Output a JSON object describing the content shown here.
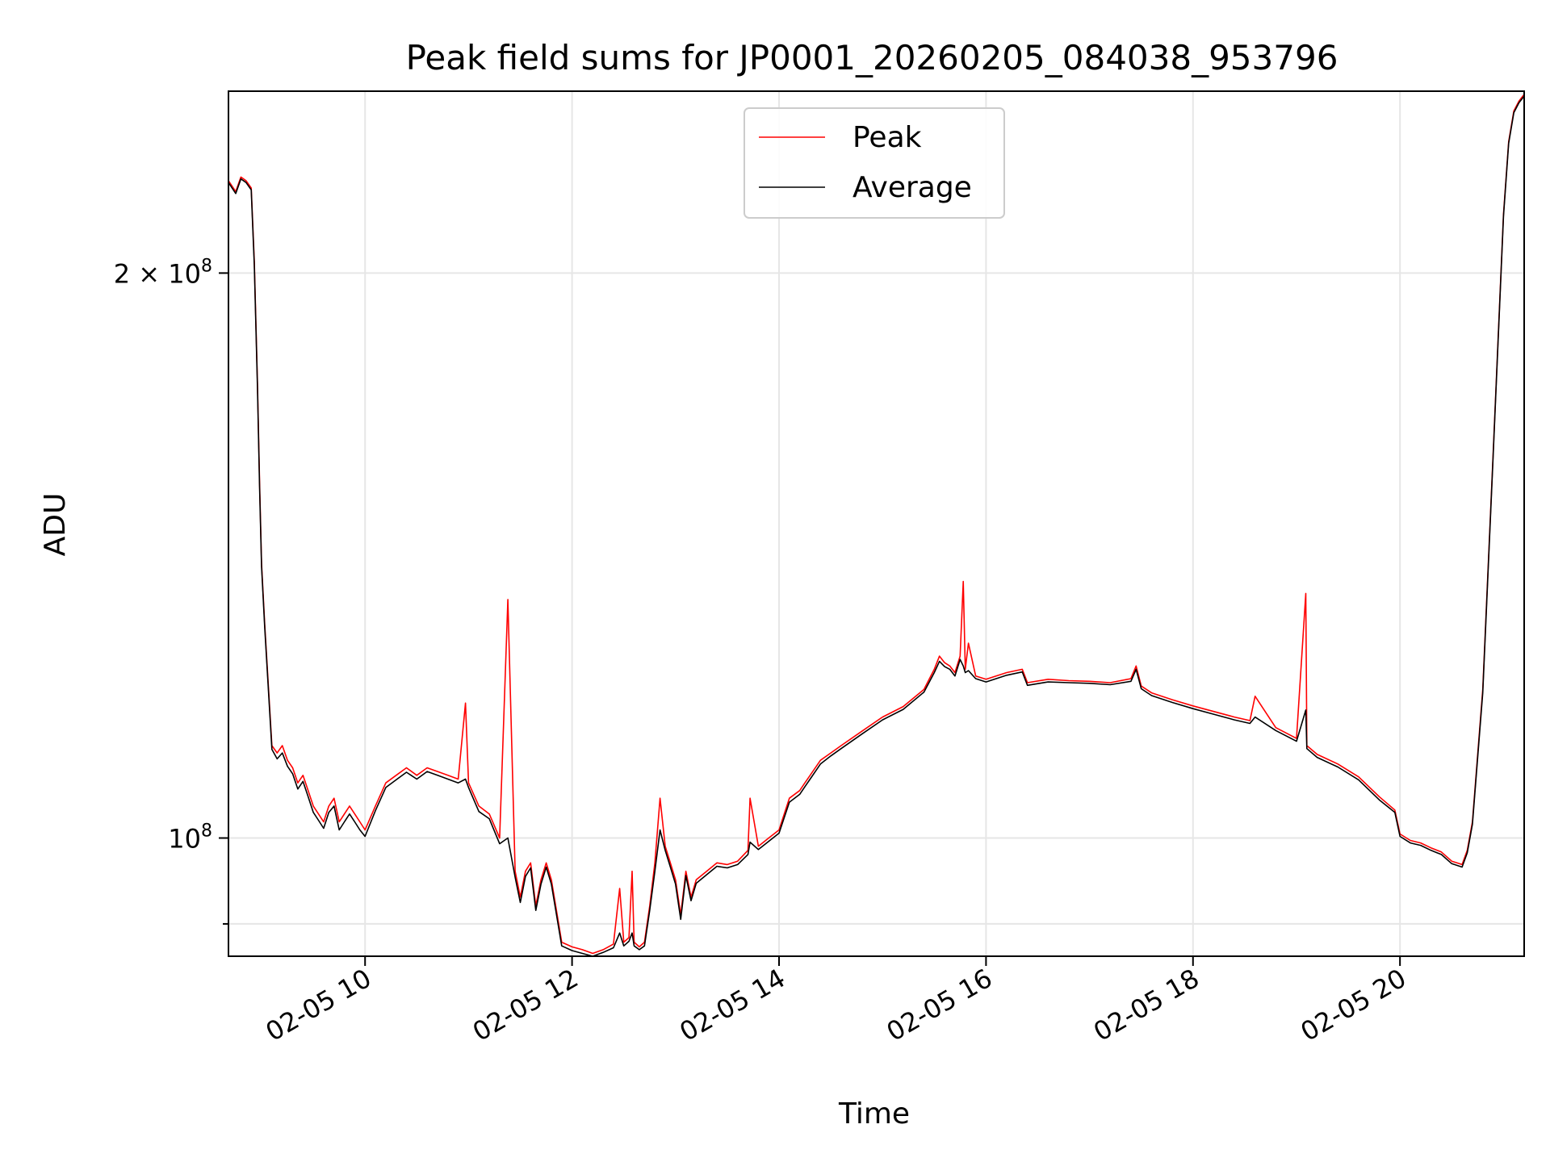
{
  "chart_data": {
    "type": "line",
    "title": "Peak field sums for JP0001_20260205_084038_953796",
    "xlabel": "Time",
    "ylabel": "ADU",
    "x_unit": "hours on 02-05",
    "xlim": [
      8.68,
      21.2
    ],
    "ylim": [
      86500000,
      250000000
    ],
    "y_scale": "log",
    "grid": true,
    "legend_position": "upper center",
    "x_ticks": [
      {
        "value": 10,
        "label": "02-05 10"
      },
      {
        "value": 12,
        "label": "02-05 12"
      },
      {
        "value": 14,
        "label": "02-05 14"
      },
      {
        "value": 16,
        "label": "02-05 16"
      },
      {
        "value": 18,
        "label": "02-05 18"
      },
      {
        "value": 20,
        "label": "02-05 20"
      }
    ],
    "y_ticks": [
      {
        "value": 100000000,
        "base": "10",
        "exp": "8",
        "mult": ""
      },
      {
        "value": 200000000,
        "base": "10",
        "exp": "8",
        "mult": "2 × "
      }
    ],
    "y_minor_ticks": [
      90000000
    ],
    "series": [
      {
        "name": "Peak",
        "color": "#ff0000",
        "x": [
          8.68,
          8.75,
          8.8,
          8.85,
          8.9,
          8.93,
          8.96,
          8.98,
          9.0,
          9.03,
          9.06,
          9.1,
          9.15,
          9.2,
          9.25,
          9.3,
          9.35,
          9.4,
          9.45,
          9.5,
          9.55,
          9.6,
          9.65,
          9.7,
          9.75,
          9.8,
          9.85,
          9.9,
          9.95,
          10.0,
          10.1,
          10.2,
          10.3,
          10.4,
          10.5,
          10.6,
          10.7,
          10.8,
          10.9,
          10.97,
          11.0,
          11.1,
          11.2,
          11.3,
          11.38,
          11.45,
          11.5,
          11.55,
          11.6,
          11.65,
          11.7,
          11.75,
          11.8,
          11.9,
          12.0,
          12.1,
          12.2,
          12.3,
          12.4,
          12.46,
          12.5,
          12.55,
          12.58,
          12.6,
          12.65,
          12.7,
          12.75,
          12.8,
          12.85,
          12.9,
          12.95,
          13.0,
          13.05,
          13.1,
          13.15,
          13.2,
          13.3,
          13.4,
          13.5,
          13.6,
          13.7,
          13.72,
          13.8,
          13.9,
          14.0,
          14.1,
          14.2,
          14.25,
          14.3,
          14.4,
          14.5,
          14.6,
          14.8,
          15.0,
          15.2,
          15.4,
          15.5,
          15.55,
          15.6,
          15.65,
          15.7,
          15.75,
          15.78,
          15.8,
          15.83,
          15.9,
          16.0,
          16.2,
          16.35,
          16.4,
          16.6,
          16.8,
          17.0,
          17.2,
          17.4,
          17.45,
          17.5,
          17.6,
          17.8,
          18.0,
          18.2,
          18.4,
          18.55,
          18.6,
          18.8,
          19.0,
          19.09,
          19.1,
          19.2,
          19.4,
          19.6,
          19.8,
          19.95,
          20.0,
          20.1,
          20.2,
          20.3,
          20.4,
          20.5,
          20.55,
          20.6,
          20.65,
          20.7,
          20.8,
          20.9,
          21.0,
          21.05,
          21.1,
          21.15,
          21.2
        ],
        "y": [
          224000000,
          221000000,
          225000000,
          224000000,
          222000000,
          203000000,
          175000000,
          155000000,
          140000000,
          130000000,
          122000000,
          112000000,
          111000000,
          112000000,
          110000000,
          109000000,
          107000000,
          108000000,
          106000000,
          104000000,
          103000000,
          102000000,
          104000000,
          105000000,
          102000000,
          103000000,
          104000000,
          103000000,
          102000000,
          101000000,
          104000000,
          107000000,
          108000000,
          109000000,
          108000000,
          109000000,
          108500000,
          108000000,
          107500000,
          118000000,
          107000000,
          104000000,
          103000000,
          100000000,
          134000000,
          96000000,
          93000000,
          96000000,
          97000000,
          92000000,
          95000000,
          97000000,
          95000000,
          88000000,
          87500000,
          87200000,
          86800000,
          87200000,
          87800000,
          94000000,
          88000000,
          88500000,
          96000000,
          88000000,
          87500000,
          88000000,
          92000000,
          97000000,
          105000000,
          99000000,
          97000000,
          95000000,
          91000000,
          96000000,
          93000000,
          95000000,
          96000000,
          97000000,
          96800000,
          97200000,
          98500000,
          105000000,
          99000000,
          100000000,
          101000000,
          105000000,
          106000000,
          107000000,
          108000000,
          110000000,
          111000000,
          112000000,
          114000000,
          116000000,
          117500000,
          120000000,
          123000000,
          125000000,
          124000000,
          123500000,
          122500000,
          125000000,
          137000000,
          123000000,
          127000000,
          122000000,
          121500000,
          122500000,
          123000000,
          121000000,
          121500000,
          121300000,
          121200000,
          121000000,
          121600000,
          123500000,
          120500000,
          119500000,
          118500000,
          117600000,
          116800000,
          116000000,
          115500000,
          119000000,
          114500000,
          113000000,
          135000000,
          112000000,
          110800000,
          109500000,
          107800000,
          105200000,
          103500000,
          100500000,
          99700000,
          99400000,
          98800000,
          98300000,
          97200000,
          97000000,
          96800000,
          98500000,
          102000000,
          120000000,
          160000000,
          215000000,
          235000000,
          244000000,
          247000000,
          249000000
        ]
      },
      {
        "name": "Average",
        "color": "#000000",
        "x": [
          8.68,
          8.75,
          8.8,
          8.85,
          8.9,
          8.93,
          8.96,
          8.98,
          9.0,
          9.03,
          9.06,
          9.1,
          9.15,
          9.2,
          9.25,
          9.3,
          9.35,
          9.4,
          9.45,
          9.5,
          9.55,
          9.6,
          9.65,
          9.7,
          9.75,
          9.8,
          9.85,
          9.9,
          9.95,
          10.0,
          10.1,
          10.2,
          10.3,
          10.4,
          10.5,
          10.6,
          10.7,
          10.8,
          10.9,
          10.97,
          11.0,
          11.1,
          11.2,
          11.3,
          11.38,
          11.45,
          11.5,
          11.55,
          11.6,
          11.65,
          11.7,
          11.75,
          11.8,
          11.9,
          12.0,
          12.1,
          12.2,
          12.3,
          12.4,
          12.46,
          12.5,
          12.55,
          12.58,
          12.6,
          12.65,
          12.7,
          12.75,
          12.8,
          12.85,
          12.9,
          12.95,
          13.0,
          13.05,
          13.1,
          13.15,
          13.2,
          13.3,
          13.4,
          13.5,
          13.6,
          13.7,
          13.72,
          13.8,
          13.9,
          14.0,
          14.1,
          14.2,
          14.25,
          14.3,
          14.4,
          14.5,
          14.6,
          14.8,
          15.0,
          15.2,
          15.4,
          15.5,
          15.55,
          15.6,
          15.65,
          15.7,
          15.75,
          15.78,
          15.8,
          15.83,
          15.9,
          16.0,
          16.2,
          16.35,
          16.4,
          16.6,
          16.8,
          17.0,
          17.2,
          17.4,
          17.45,
          17.5,
          17.6,
          17.8,
          18.0,
          18.2,
          18.4,
          18.55,
          18.6,
          18.8,
          19.0,
          19.09,
          19.1,
          19.2,
          19.4,
          19.6,
          19.8,
          19.95,
          20.0,
          20.1,
          20.2,
          20.3,
          20.4,
          20.5,
          20.55,
          20.6,
          20.65,
          20.7,
          20.8,
          20.9,
          21.0,
          21.05,
          21.1,
          21.15,
          21.2
        ],
        "y": [
          223500000,
          220500000,
          224500000,
          223500000,
          221500000,
          202000000,
          174000000,
          154000000,
          139500000,
          129500000,
          121500000,
          111500000,
          110200000,
          111000000,
          109200000,
          108200000,
          106200000,
          107200000,
          105200000,
          103200000,
          102200000,
          101200000,
          103200000,
          104000000,
          101000000,
          102000000,
          103000000,
          102000000,
          101000000,
          100200000,
          103400000,
          106400000,
          107400000,
          108400000,
          107500000,
          108500000,
          108000000,
          107500000,
          107000000,
          107500000,
          106400000,
          103300000,
          102400000,
          99300000,
          100000000,
          95300000,
          92400000,
          95400000,
          96400000,
          91500000,
          94500000,
          96500000,
          94500000,
          87600000,
          87100000,
          86800000,
          86500000,
          86900000,
          87400000,
          89000000,
          87600000,
          88100000,
          89000000,
          87600000,
          87200000,
          87600000,
          91500000,
          96000000,
          101000000,
          98500000,
          96500000,
          94500000,
          90500000,
          95500000,
          92600000,
          94600000,
          95600000,
          96600000,
          96400000,
          96800000,
          98000000,
          99500000,
          98600000,
          99600000,
          100600000,
          104500000,
          105500000,
          106500000,
          107500000,
          109500000,
          110600000,
          111600000,
          113600000,
          115600000,
          117100000,
          119600000,
          122500000,
          124200000,
          123400000,
          123000000,
          122000000,
          124500000,
          123500000,
          122500000,
          122800000,
          121600000,
          121100000,
          122100000,
          122600000,
          120600000,
          121100000,
          121000000,
          120900000,
          120700000,
          121200000,
          123000000,
          120100000,
          119100000,
          118100000,
          117200000,
          116400000,
          115600000,
          115100000,
          116000000,
          114100000,
          112600000,
          117000000,
          111600000,
          110400000,
          109100000,
          107400000,
          104800000,
          103200000,
          100200000,
          99400000,
          99100000,
          98500000,
          98000000,
          96900000,
          96700000,
          96500000,
          98200000,
          101700000,
          119500000,
          159500000,
          214500000,
          234500000,
          243500000,
          246500000,
          248500000
        ]
      }
    ]
  }
}
